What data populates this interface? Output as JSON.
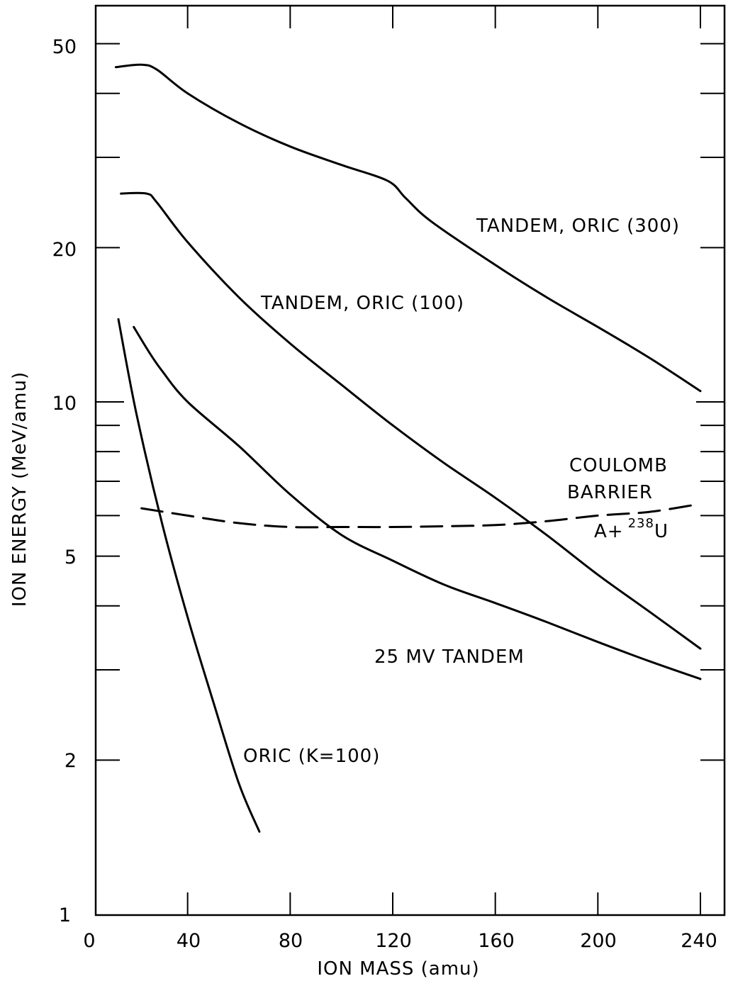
{
  "chart_data": {
    "type": "line",
    "xlabel": "ION MASS (amu)",
    "ylabel": "ION ENERGY (MeV/amu)",
    "xlim": [
      0,
      260
    ],
    "ylim": [
      1,
      60
    ],
    "yscale": "log",
    "x_ticks": [
      "0",
      "40",
      "80",
      "120",
      "160",
      "200",
      "240"
    ],
    "y_ticks": [
      "1",
      "2",
      "5",
      "10",
      "20",
      "50"
    ],
    "grid": false,
    "series": [
      {
        "name": "TANDEM, ORIC (300)",
        "style": "solid",
        "x": [
          12,
          22,
          28,
          40,
          60,
          80,
          100,
          118,
          125,
          135,
          160,
          180,
          200,
          220,
          240
        ],
        "y": [
          45,
          45.5,
          44.5,
          40,
          35,
          31.5,
          29,
          27,
          25,
          22.5,
          18.5,
          16,
          14,
          12.2,
          10.5
        ]
      },
      {
        "name": "TANDEM, ORIC (100)",
        "style": "solid",
        "x": [
          14,
          24,
          28,
          40,
          60,
          80,
          100,
          120,
          140,
          160,
          180,
          200,
          220,
          240
        ],
        "y": [
          25.5,
          25.5,
          24.5,
          20.5,
          16,
          13,
          10.8,
          9,
          7.6,
          6.5,
          5.5,
          4.6,
          3.9,
          3.3
        ]
      },
      {
        "name": "25 MV TANDEM",
        "style": "solid",
        "x": [
          19,
          25,
          30,
          40,
          60,
          80,
          100,
          120,
          140,
          160,
          180,
          200,
          220,
          240
        ],
        "y": [
          14,
          12.5,
          11.5,
          10,
          8.2,
          6.6,
          5.5,
          4.9,
          4.4,
          4.05,
          3.72,
          3.4,
          3.12,
          2.88
        ]
      },
      {
        "name": "ORIC (K=100)",
        "style": "solid",
        "x": [
          13,
          20,
          30,
          40,
          50,
          60,
          68
        ],
        "y": [
          14.5,
          9.5,
          5.8,
          3.8,
          2.6,
          1.8,
          1.45
        ]
      },
      {
        "name": "COULOMB BARRIER A+238U",
        "style": "dashed",
        "x": [
          22,
          40,
          60,
          80,
          100,
          120,
          140,
          160,
          180,
          200,
          220,
          238
        ],
        "y": [
          6.2,
          6.0,
          5.8,
          5.7,
          5.7,
          5.7,
          5.72,
          5.75,
          5.85,
          6.0,
          6.1,
          6.3
        ]
      }
    ],
    "annotations": {
      "tandem_oric_300": "TANDEM, ORIC (300)",
      "tandem_oric_100": "TANDEM, ORIC (100)",
      "coulomb_line1": "COULOMB",
      "coulomb_line2": "BARRIER",
      "coulomb_formula_base": "A+",
      "coulomb_formula_sup": "238",
      "coulomb_formula_elem": "U",
      "tandem_25mv": "25 MV TANDEM",
      "oric_k100": "ORIC (K=100)"
    }
  }
}
